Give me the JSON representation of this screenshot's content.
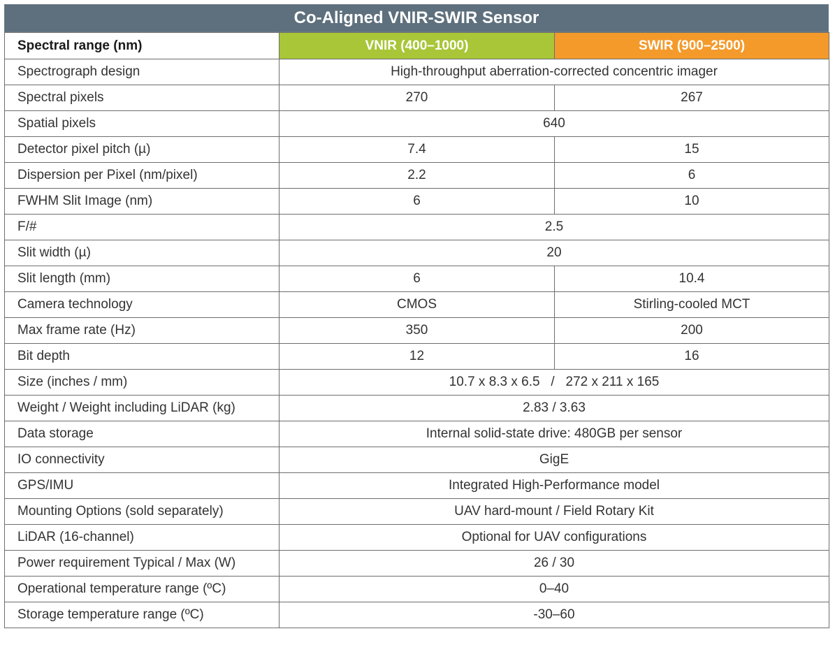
{
  "title": "Co-Aligned VNIR-SWIR Sensor",
  "colors": {
    "title_bar": "#5e707d",
    "vnir": "#a8c637",
    "swir": "#f49a2a",
    "border": "#6e6e6e"
  },
  "header": {
    "label": "Spectral range (nm)",
    "vnir": "VNIR (400–1000)",
    "swir": "SWIR (900–2500)"
  },
  "rows": [
    {
      "label": "Spectrograph design",
      "merged": "High-throughput aberration-corrected concentric imager"
    },
    {
      "label": "Spectral pixels",
      "vnir": "270",
      "swir": "267"
    },
    {
      "label": "Spatial pixels",
      "merged": "640"
    },
    {
      "label": "Detector pixel pitch (µ)",
      "vnir": "7.4",
      "swir": "15"
    },
    {
      "label": "Dispersion per Pixel (nm/pixel)",
      "vnir": "2.2",
      "swir": "6"
    },
    {
      "label": "FWHM Slit Image (nm)",
      "vnir": "6",
      "swir": "10"
    },
    {
      "label": "F/#",
      "merged": "2.5"
    },
    {
      "label": "Slit width (µ)",
      "merged": "20"
    },
    {
      "label": "Slit length (mm)",
      "vnir": "6",
      "swir": "10.4"
    },
    {
      "label": "Camera technology",
      "vnir": "CMOS",
      "swir": "Stirling-cooled MCT"
    },
    {
      "label": "Max frame rate (Hz)",
      "vnir": "350",
      "swir": "200"
    },
    {
      "label": "Bit depth",
      "vnir": "12",
      "swir": "16"
    },
    {
      "label": "Size (inches / mm)",
      "merged": "10.7 x 8.3 x 6.5   /   272 x 211 x 165"
    },
    {
      "label": "Weight / Weight including LiDAR (kg)",
      "merged": "2.83 / 3.63"
    },
    {
      "label": "Data storage",
      "merged": "Internal solid-state drive: 480GB per sensor"
    },
    {
      "label": "IO connectivity",
      "merged": "GigE"
    },
    {
      "label": "GPS/IMU",
      "merged": "Integrated High-Performance model"
    },
    {
      "label": "Mounting Options (sold separately)",
      "merged": "UAV hard-mount / Field Rotary Kit"
    },
    {
      "label": "LiDAR (16-channel)",
      "merged": "Optional for UAV configurations"
    },
    {
      "label": "Power requirement  Typical / Max (W)",
      "merged": "26 / 30"
    },
    {
      "label": "Operational temperature range (ºC)",
      "merged": "0–40"
    },
    {
      "label": "Storage temperature range (ºC)",
      "merged": "-30–60"
    }
  ]
}
